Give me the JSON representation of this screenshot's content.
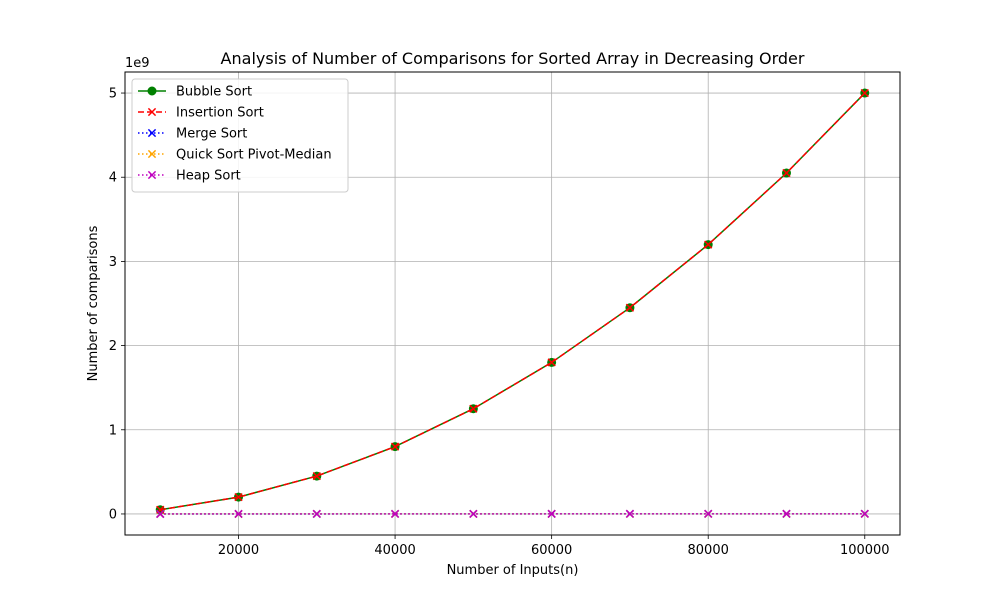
{
  "chart_data": {
    "type": "line",
    "title": "Analysis of Number of Comparisons for Sorted Array in Decreasing Order",
    "xlabel": "Number of Inputs(n)",
    "ylabel": "Number of comparisons",
    "y_offset_label": "1e9",
    "x": [
      10000,
      20000,
      30000,
      40000,
      50000,
      60000,
      70000,
      80000,
      90000,
      100000
    ],
    "xticks": [
      20000,
      40000,
      60000,
      80000,
      100000
    ],
    "xtick_labels": [
      "20000",
      "40000",
      "60000",
      "80000",
      "100000"
    ],
    "yticks": [
      0,
      1000000000,
      2000000000,
      3000000000,
      4000000000,
      5000000000
    ],
    "ytick_labels": [
      "0",
      "1",
      "2",
      "3",
      "4",
      "5"
    ],
    "xlim": [
      5500,
      104500
    ],
    "ylim": [
      -250000000,
      5250000000
    ],
    "grid": true,
    "legend_position": "top-left",
    "series": [
      {
        "name": "Bubble Sort",
        "color": "#008000",
        "linestyle": "solid",
        "marker": "circle",
        "values": [
          49995000,
          199990000,
          449985000,
          799980000,
          1249975000,
          1799970000,
          2449965000,
          3199960000,
          4049955000,
          4999950000
        ]
      },
      {
        "name": "Insertion Sort",
        "color": "#ff0000",
        "linestyle": "dashed",
        "marker": "x",
        "values": [
          49995000,
          199990000,
          449985000,
          799980000,
          1249975000,
          1799970000,
          2449965000,
          3199960000,
          4049955000,
          4999950000
        ]
      },
      {
        "name": "Merge Sort",
        "color": "#0000ff",
        "linestyle": "dotted",
        "marker": "x",
        "values": [
          69008,
          148016,
          227728,
          316032,
          401952,
          487456,
          577728,
          672064,
          756320,
          853904
        ]
      },
      {
        "name": "Quick Sort Pivot-Median",
        "color": "#ffa500",
        "linestyle": "dotted",
        "marker": "x",
        "values": [
          120000,
          260000,
          400000,
          560000,
          710000,
          860000,
          1020000,
          1180000,
          1330000,
          1500000
        ]
      },
      {
        "name": "Heap Sort",
        "color": "#bf00bf",
        "linestyle": "dotted",
        "marker": "x",
        "values": [
          240000,
          520000,
          810000,
          1110000,
          1420000,
          1730000,
          2040000,
          2360000,
          2690000,
          3010000
        ]
      }
    ]
  }
}
